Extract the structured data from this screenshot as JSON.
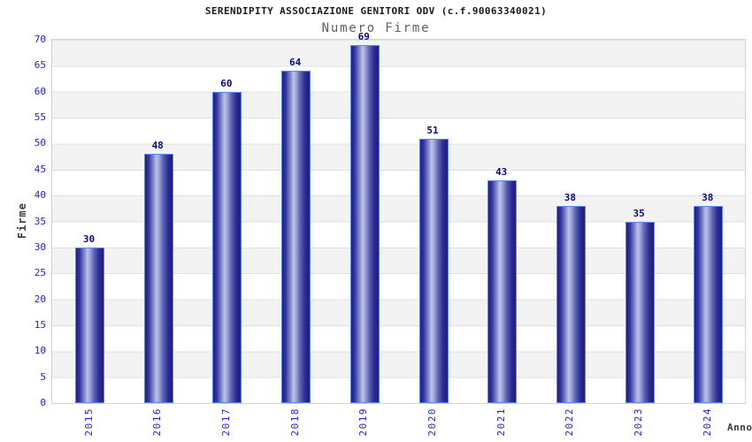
{
  "chart_data": {
    "type": "bar",
    "title": "SERENDIPITY ASSOCIAZIONE GENITORI ODV (c.f.90063340021)",
    "subtitle": "Numero Firme",
    "xlabel": "Anno",
    "ylabel": "Firme",
    "categories": [
      "2015",
      "2016",
      "2017",
      "2018",
      "2019",
      "2020",
      "2021",
      "2022",
      "2023",
      "2024"
    ],
    "values": [
      30,
      48,
      60,
      64,
      69,
      51,
      43,
      38,
      35,
      38
    ],
    "ylim": [
      0,
      70
    ],
    "ytick_step": 5,
    "y_ticks": [
      0,
      5,
      10,
      15,
      20,
      25,
      30,
      35,
      40,
      45,
      50,
      55,
      60,
      65,
      70
    ],
    "grid": "horizontal gridlines with alternating 5-unit shaded bands",
    "legend": "none",
    "colors": {
      "title_color": "#1a1a1a",
      "subtitle_color": "#606060",
      "tick_label": "#2525cd",
      "value_label": "#0a0a7d",
      "axis_label": "#3c3c3c",
      "bar_dark": "#20208a",
      "bar_light": "#bcc2ea",
      "bar_edge": "#5c85f2",
      "band": "#f3f3f3",
      "grid": "#e0e0e0"
    }
  }
}
